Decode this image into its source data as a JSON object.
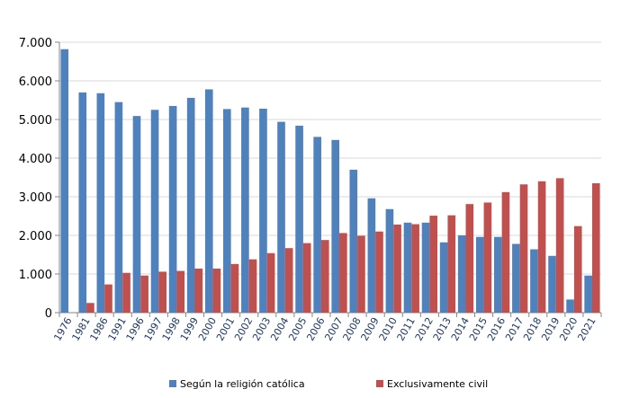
{
  "chart_data": {
    "type": "bar",
    "title": "",
    "xlabel": "",
    "ylabel": "",
    "ylim": [
      0,
      7000
    ],
    "yticks": [
      "0",
      "1.000",
      "2.000",
      "3.000",
      "4.000",
      "5.000",
      "6.000",
      "7.000"
    ],
    "grid": true,
    "legend_position": "bottom",
    "categories": [
      "1976",
      "1981",
      "1986",
      "1991",
      "1996",
      "1997",
      "1998",
      "1999",
      "2000",
      "2001",
      "2002",
      "2003",
      "2004",
      "2005",
      "2006",
      "2007",
      "2008",
      "2009",
      "2010",
      "2011",
      "2012",
      "2013",
      "2014",
      "2015",
      "2016",
      "2017",
      "2018",
      "2019",
      "2020",
      "2021"
    ],
    "series": [
      {
        "name": "Según la religión católica",
        "color": "#4F81BD",
        "values": [
          6820,
          5700,
          5680,
          5450,
          5090,
          5250,
          5350,
          5560,
          5780,
          5270,
          5310,
          5280,
          4940,
          4840,
          4550,
          4470,
          3700,
          2960,
          2680,
          2330,
          2330,
          1820,
          2000,
          1960,
          1960,
          1780,
          1640,
          1470,
          340,
          960
        ]
      },
      {
        "name": "Exclusivamente civil",
        "color": "#C0504D",
        "values": [
          0,
          250,
          730,
          1030,
          960,
          1060,
          1080,
          1140,
          1140,
          1260,
          1380,
          1540,
          1670,
          1800,
          1880,
          2060,
          1990,
          2100,
          2280,
          2290,
          2510,
          2520,
          2810,
          2850,
          3120,
          3320,
          3400,
          3480,
          2240,
          3350
        ]
      }
    ]
  }
}
